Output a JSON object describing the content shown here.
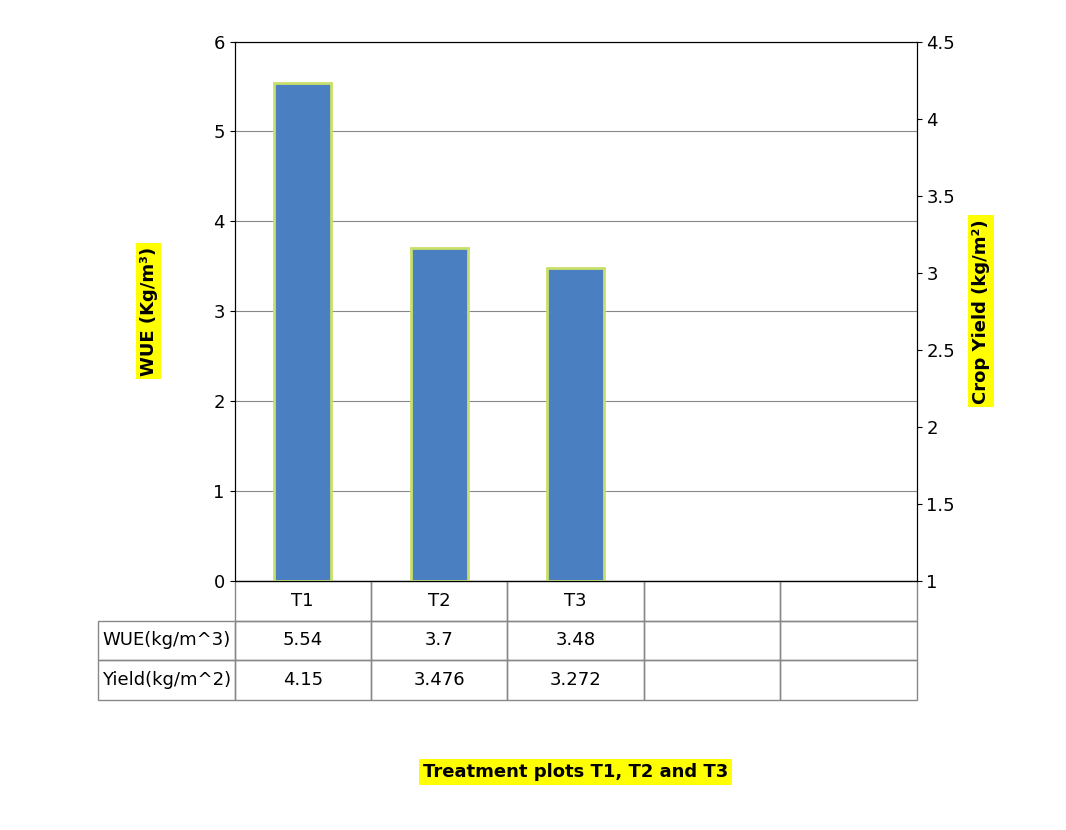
{
  "chart_data": {
    "type": "bar",
    "categories": [
      "T1",
      "T2",
      "T3"
    ],
    "series": [
      {
        "name": "WUE(kg/m^3)",
        "type": "bar",
        "color": "#4a7fc1",
        "values": [
          5.54,
          3.7,
          3.48
        ]
      },
      {
        "name": "Yield(kg/m^2)",
        "type": "table",
        "axis": "y2",
        "values": [
          4.15,
          3.476,
          3.272
        ]
      }
    ],
    "ylabel": "WUE (Kg/m³)",
    "y2label": "Crop Yield (kg/m²)",
    "xlabel": "Treatment plots T1, T2 and T3",
    "ylim": [
      0,
      6
    ],
    "yticks": [
      0,
      1,
      2,
      3,
      4,
      5,
      6
    ],
    "y2lim": [
      1,
      4.5
    ],
    "y2ticks": [
      1,
      1.5,
      2,
      2.5,
      3,
      3.5,
      4,
      4.5
    ],
    "grid": true
  }
}
